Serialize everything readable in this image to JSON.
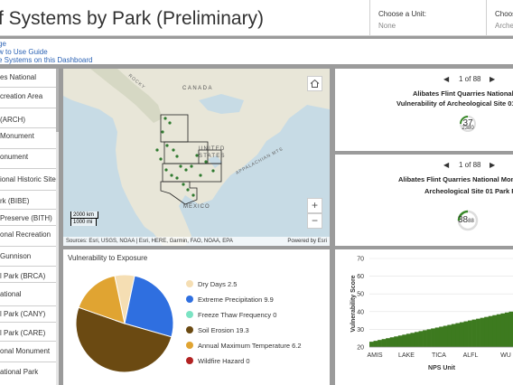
{
  "header": {
    "title": "f Systems by Park (Preliminary)",
    "unit_selector": {
      "label": "Choose a Unit:",
      "value": "None"
    },
    "second_selector": {
      "label": "Choos",
      "value": "Archeo"
    }
  },
  "links": [
    "ge",
    "w to Use Guide",
    "e Systems on this Dashboard"
  ],
  "sidebar": {
    "items": [
      [
        "es National"
      ],
      [
        "creation Area"
      ],
      [
        "(ARCH)"
      ],
      [
        "Monument"
      ],
      [
        "onument"
      ],
      [
        "ional Historic Site"
      ],
      [
        "rk (BIBE)"
      ],
      [
        "Preserve (BITH)"
      ],
      [
        "onal Recreation"
      ],
      [
        "Gunnison"
      ],
      [
        "l Park (BRCA)"
      ],
      [
        "ational"
      ],
      [
        "l Park (CANY)"
      ],
      [
        "l Park (CARE)"
      ],
      [
        "onal Monument"
      ],
      [
        "ational Park"
      ]
    ]
  },
  "map": {
    "labels": {
      "canada": "CANADA",
      "united": "UNITED",
      "states": "STATES",
      "mexico": "MEXICO",
      "rocky": "ROCKY",
      "appalachian": "APPALACHIAN MTS"
    },
    "scale": {
      "km": "2000 km",
      "mi": "1000 mi"
    },
    "attribution": "Sources: Esri, USGS, NOAA | Esri, HERE, Garmin, FAO, NOAA, EPA",
    "powered": "Powered by Esri",
    "home_icon": "home-icon",
    "zoom_in": "+",
    "zoom_out": "−"
  },
  "card1": {
    "pager": "1 of 88",
    "title_line1": "Alibates Flint Quarries National Mon",
    "title_line2": "Vulnerability of Archeological Site 01",
    "gauge_value": "37",
    "gauge_sub": "2380"
  },
  "card2": {
    "pager": "1 of 88",
    "title_line1": "Alibates Flint Quarries National Mon",
    "title_line2": "Archeological Site 01 Park Ran",
    "gauge_value": "38",
    "gauge_sub": "88"
  },
  "colors": {
    "dry": "#f5deb3",
    "precip": "#2f6fe0",
    "freeze": "#7be3c3",
    "erosion": "#6b4a12",
    "temp": "#e0a432",
    "wildfire": "#b22222",
    "bars": "#3d7a1f",
    "gauge": "#3a8a2a"
  },
  "pie_panel": {
    "title": "Vulnerability to Exposure",
    "legend": [
      {
        "label": "Dry Days",
        "value": "2.5",
        "color_key": "dry"
      },
      {
        "label": "Extreme Precipitation",
        "value": "9.9",
        "color_key": "precip"
      },
      {
        "label": "Freeze Thaw Frequency",
        "value": "0",
        "color_key": "freeze"
      },
      {
        "label": "Soil Erosion",
        "value": "19.3",
        "color_key": "erosion"
      },
      {
        "label": "Annual Maximum Temperature",
        "value": "6.2",
        "color_key": "temp"
      },
      {
        "label": "Wildfire Hazard",
        "value": "0",
        "color_key": "wildfire"
      }
    ]
  },
  "bar_panel": {
    "ylabel": "Vulnerability Score",
    "xlabel": "NPS Unit",
    "yticks": [
      "70",
      "60",
      "50",
      "40",
      "30",
      "20"
    ],
    "xticks": [
      "AMIS",
      "LAKE",
      "TICA",
      "ALFL",
      "WU"
    ]
  },
  "chart_data": [
    {
      "type": "pie",
      "title": "Vulnerability to Exposure",
      "categories": [
        "Dry Days",
        "Extreme Precipitation",
        "Freeze Thaw Frequency",
        "Soil Erosion",
        "Annual Maximum Temperature",
        "Wildfire Hazard"
      ],
      "values": [
        2.5,
        9.9,
        0,
        19.3,
        6.2,
        0
      ]
    },
    {
      "type": "bar",
      "xlabel": "NPS Unit",
      "ylabel": "Vulnerability Score",
      "ylim": [
        20,
        70
      ],
      "x_ticks": [
        "AMIS",
        "LAKE",
        "TICA",
        "ALFL",
        "WU"
      ],
      "values": [
        23,
        23.5,
        24,
        24.5,
        25,
        25.5,
        26,
        26.5,
        27,
        27.5,
        28,
        28.5,
        29,
        29.5,
        30,
        30.5,
        31,
        31.5,
        32,
        32.5,
        33,
        33.5,
        34,
        34.5,
        35,
        35.5,
        36,
        36.5,
        37,
        37.5,
        38,
        38.5,
        39,
        39.5,
        40
      ]
    }
  ]
}
